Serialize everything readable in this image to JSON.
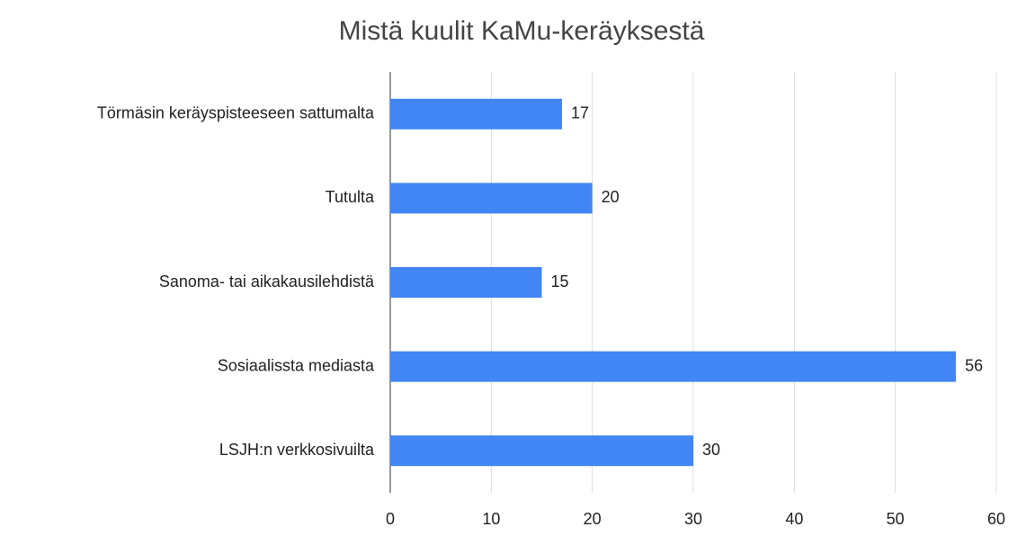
{
  "chart_data": {
    "type": "bar",
    "orientation": "horizontal",
    "title": "Mistä kuulit KaMu-keräyksestä",
    "categories": [
      "Törmäsin keräyspisteeseen sattumalta",
      "Tutulta",
      "Sanoma- tai aikakausilehdistä",
      "Sosiaalissta mediasta",
      "LSJH:n verkkosivuilta"
    ],
    "values": [
      17,
      20,
      15,
      56,
      30
    ],
    "color": "#4285f4",
    "xlim": [
      0,
      60
    ],
    "xticks": [
      0,
      10,
      20,
      30,
      40,
      50,
      60
    ],
    "grid": true,
    "data_labels": true
  }
}
